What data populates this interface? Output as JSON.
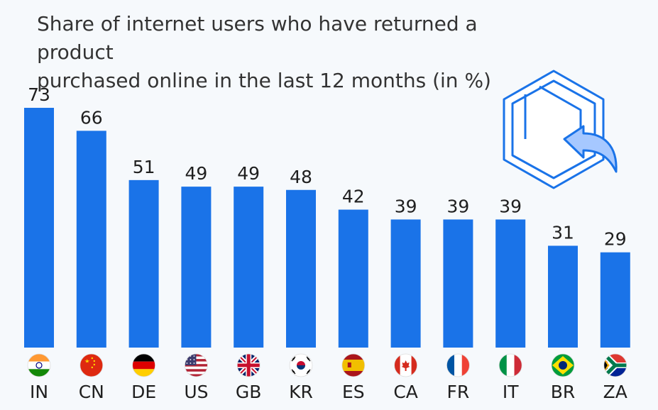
{
  "chart_data": {
    "type": "bar",
    "title_line1": "Share of internet users who have returned a product",
    "title_line2": "purchased online in the last 12 months (in %)",
    "categories": [
      "IN",
      "CN",
      "DE",
      "US",
      "GB",
      "KR",
      "ES",
      "CA",
      "FR",
      "IT",
      "BR",
      "ZA"
    ],
    "values": [
      73,
      66,
      51,
      49,
      49,
      48,
      42,
      39,
      39,
      39,
      31,
      29
    ],
    "flags": [
      "india-flag",
      "china-flag",
      "germany-flag",
      "usa-flag",
      "uk-flag",
      "south-korea-flag",
      "spain-flag",
      "canada-flag",
      "france-flag",
      "italy-flag",
      "brazil-flag",
      "south-africa-flag"
    ],
    "xlabel": "",
    "ylabel": "",
    "ylim": [
      0,
      73
    ],
    "grid": false,
    "bar_color": "#1a73e8",
    "icon": "return-package-icon"
  }
}
